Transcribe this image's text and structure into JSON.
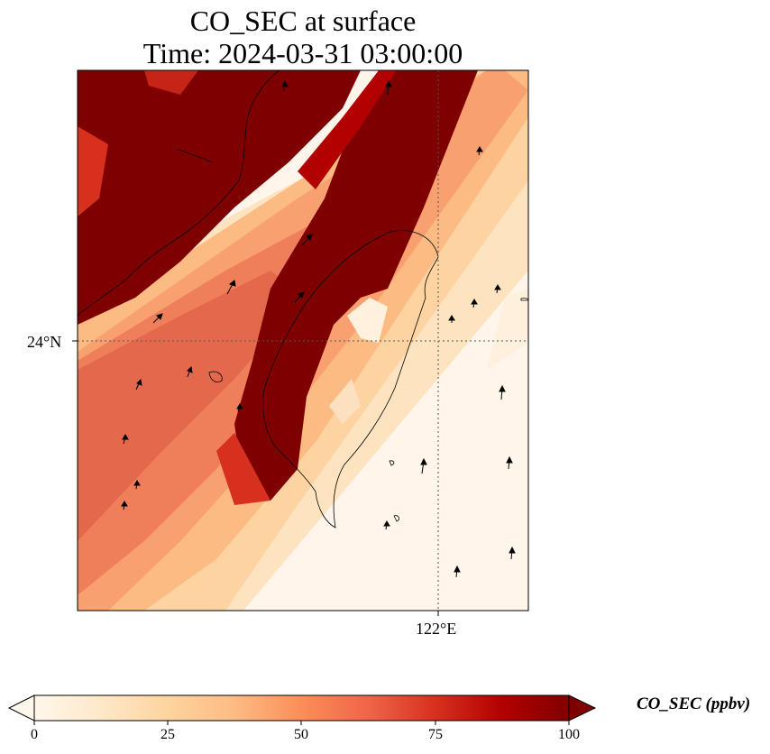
{
  "title": {
    "line1": "CO_SEC at surface",
    "line2": "Time: 2024-03-31 03:00:00"
  },
  "map": {
    "lat_label": "24°N",
    "lon_label": "122°E",
    "gridline_style": "dotted",
    "features": [
      "coastlines",
      "wind-vectors",
      "gridded-field"
    ],
    "field_description_colors": {
      "low": "#fff5eb",
      "high": "#7f0000"
    }
  },
  "colorbar": {
    "label": "CO_SEC (ppbv)",
    "ticks": [
      "0",
      "25",
      "50",
      "75",
      "100"
    ],
    "min": 0,
    "max": 100,
    "extend": "both",
    "colormap": "OrRd",
    "stops": [
      "#fff7ec",
      "#fee8c8",
      "#fdd49e",
      "#fdbb84",
      "#fc8d59",
      "#ef6548",
      "#d7301f",
      "#b30000",
      "#7f0000"
    ]
  }
}
